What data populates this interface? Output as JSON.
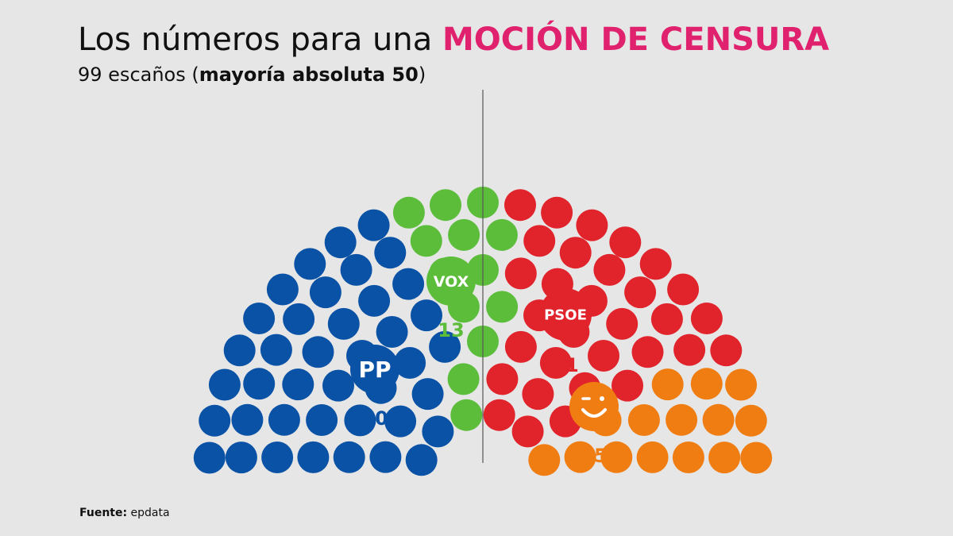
{
  "header": {
    "title_main": "Los números para una",
    "title_highlight": "MOCIÓN DE CENSURA",
    "subtitle_prefix": "99 escaños (",
    "subtitle_bold": "mayoría absoluta 50",
    "subtitle_suffix": ")"
  },
  "footer": {
    "source_label": "Fuente:",
    "source_value": "epdata"
  },
  "colors": {
    "highlight": "#e0226e",
    "background": "#e6e6e6"
  },
  "chart_data": {
    "type": "parliament",
    "total_seats": 99,
    "majority": 50,
    "parties": [
      {
        "logo": "PP",
        "seats": 40,
        "color": "#0a52a6",
        "icon": "pp-logo-icon"
      },
      {
        "logo": "VOX",
        "seats": 13,
        "color": "#5cbd3b",
        "icon": "vox-logo-icon"
      },
      {
        "logo": "PSOE",
        "seats": 31,
        "color": "#e1232b",
        "icon": "psoe-logo-icon"
      },
      {
        "logo": "",
        "seats": 15,
        "color": "#f07d12",
        "icon": "smile-logo-icon"
      }
    ]
  }
}
